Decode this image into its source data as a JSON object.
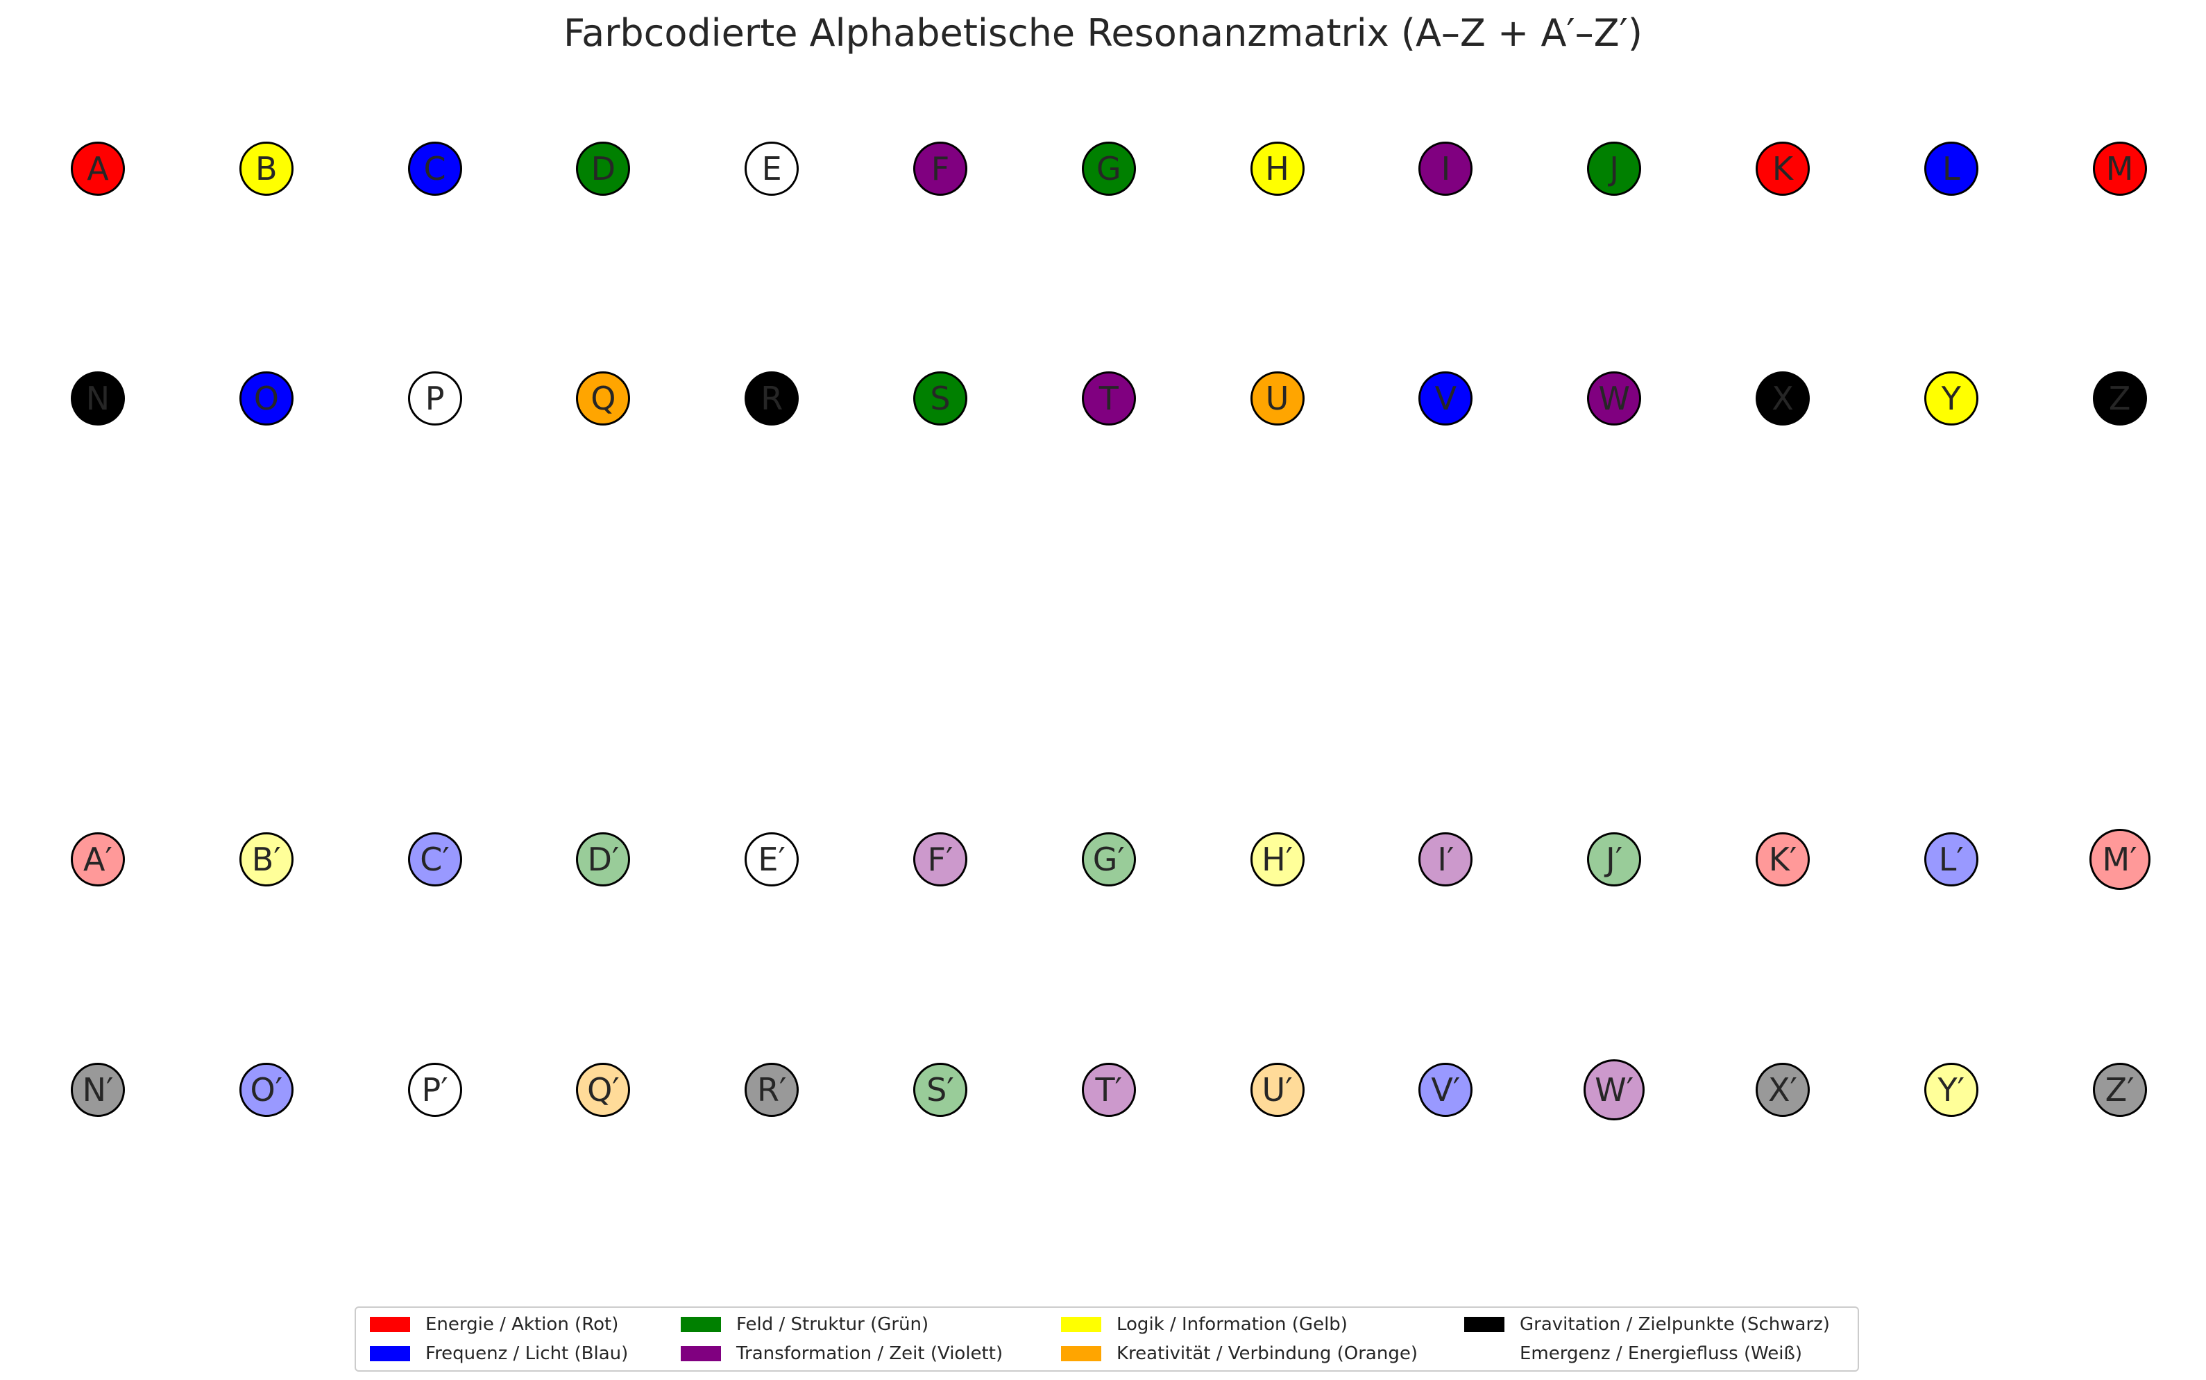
{
  "title": "Farbcodierte Alphabetische Resonanzmatrix (A–Z + A′–Z′)",
  "categories": {
    "rot": {
      "label": "Energie / Aktion (Rot)",
      "color": "#ff0000",
      "light": "#ff9999"
    },
    "blau": {
      "label": "Frequenz / Licht (Blau)",
      "color": "#0000ff",
      "light": "#9999ff"
    },
    "gruen": {
      "label": "Feld / Struktur (Grün)",
      "color": "#008000",
      "light": "#99cc99"
    },
    "violett": {
      "label": "Transformation / Zeit (Violett)",
      "color": "#800080",
      "light": "#cc99cc"
    },
    "gelb": {
      "label": "Logik / Information (Gelb)",
      "color": "#ffff00",
      "light": "#ffff99"
    },
    "orange": {
      "label": "Kreativität / Verbindung (Orange)",
      "color": "#ffa500",
      "light": "#ffdb99"
    },
    "schwarz": {
      "label": "Gravitation / Zielpunkte (Schwarz)",
      "color": "#000000",
      "light": "#999999"
    },
    "weiss": {
      "label": "Emergenz / Energiefluss (Weiß)",
      "color": "#ffffff",
      "light": "#ffffff"
    }
  },
  "legend_order": [
    "rot",
    "blau",
    "gruen",
    "violett",
    "gelb",
    "orange",
    "schwarz",
    "weiss"
  ],
  "letters": [
    {
      "letter": "A",
      "category": "rot"
    },
    {
      "letter": "B",
      "category": "gelb"
    },
    {
      "letter": "C",
      "category": "blau"
    },
    {
      "letter": "D",
      "category": "gruen"
    },
    {
      "letter": "E",
      "category": "weiss"
    },
    {
      "letter": "F",
      "category": "violett"
    },
    {
      "letter": "G",
      "category": "gruen"
    },
    {
      "letter": "H",
      "category": "gelb"
    },
    {
      "letter": "I",
      "category": "violett"
    },
    {
      "letter": "J",
      "category": "gruen"
    },
    {
      "letter": "K",
      "category": "rot"
    },
    {
      "letter": "L",
      "category": "blau"
    },
    {
      "letter": "M",
      "category": "rot"
    },
    {
      "letter": "N",
      "category": "schwarz"
    },
    {
      "letter": "O",
      "category": "blau"
    },
    {
      "letter": "P",
      "category": "weiss"
    },
    {
      "letter": "Q",
      "category": "orange"
    },
    {
      "letter": "R",
      "category": "schwarz"
    },
    {
      "letter": "S",
      "category": "gruen"
    },
    {
      "letter": "T",
      "category": "violett"
    },
    {
      "letter": "U",
      "category": "orange"
    },
    {
      "letter": "V",
      "category": "blau"
    },
    {
      "letter": "W",
      "category": "violett"
    },
    {
      "letter": "X",
      "category": "schwarz"
    },
    {
      "letter": "Y",
      "category": "gelb"
    },
    {
      "letter": "Z",
      "category": "schwarz"
    }
  ],
  "prime_mark": "′"
}
